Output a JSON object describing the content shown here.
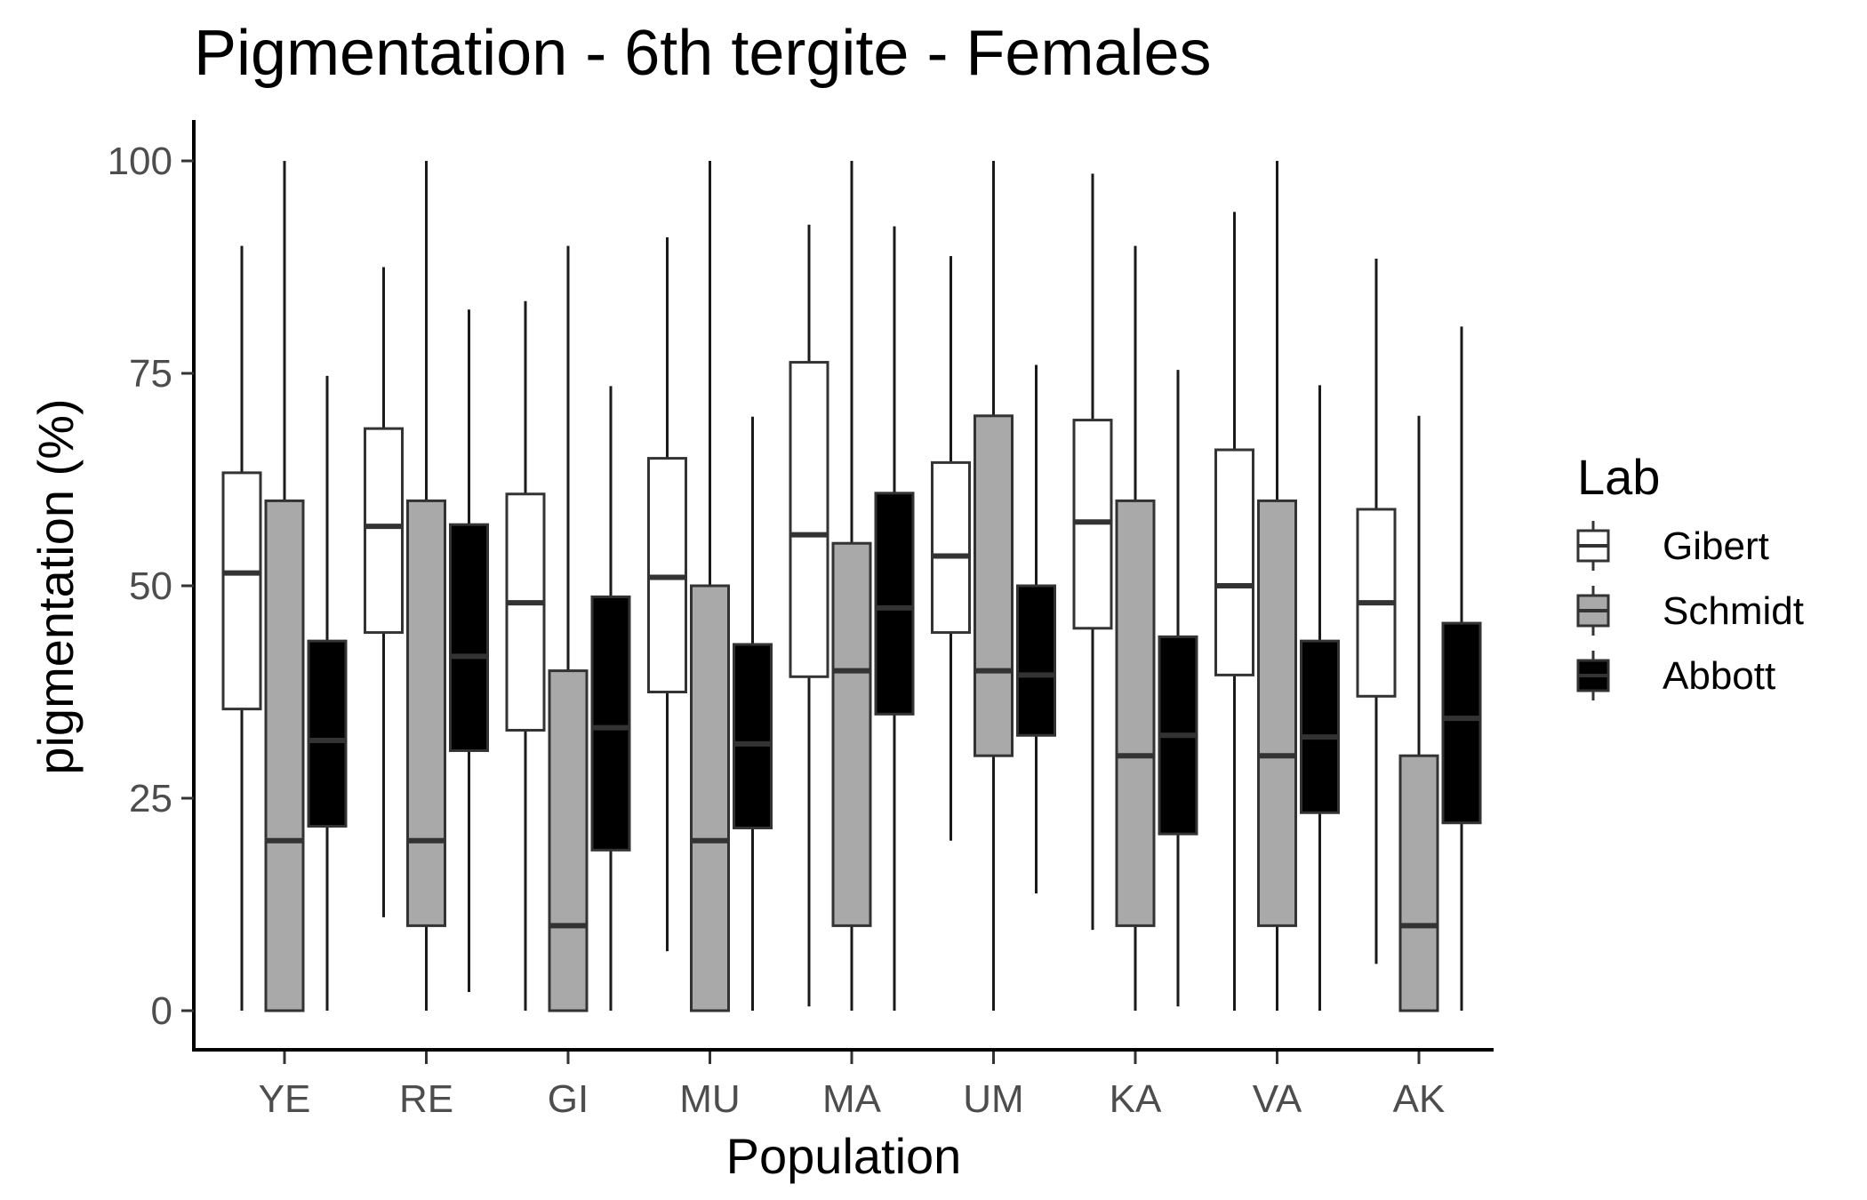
{
  "chart_data": {
    "type": "boxplot",
    "title": "Pigmentation - 6th tergite - Females",
    "xlabel": "Population",
    "ylabel": "pigmentation (%)",
    "categories": [
      "YE",
      "RE",
      "GI",
      "MU",
      "MA",
      "UM",
      "KA",
      "VA",
      "AK"
    ],
    "yticks": [
      0,
      25,
      50,
      75,
      100
    ],
    "ylim": [
      -5,
      105
    ],
    "legend": {
      "title": "Lab",
      "placement": "right"
    },
    "grid": false,
    "series": [
      {
        "name": "Gibert",
        "fill": "#ffffff",
        "median_color": "#333333",
        "boxes": [
          {
            "whisker_low": 0,
            "q1": 35.5,
            "median": 51.5,
            "q3": 63.3,
            "whisker_high": 90
          },
          {
            "whisker_low": 11,
            "q1": 44.5,
            "median": 57,
            "q3": 68.5,
            "whisker_high": 87.5
          },
          {
            "whisker_low": 0,
            "q1": 33,
            "median": 48,
            "q3": 60.8,
            "whisker_high": 83.5
          },
          {
            "whisker_low": 7,
            "q1": 37.5,
            "median": 51,
            "q3": 65,
            "whisker_high": 91
          },
          {
            "whisker_low": 0.5,
            "q1": 39.3,
            "median": 56,
            "q3": 76.3,
            "whisker_high": 92.5
          },
          {
            "whisker_low": 20,
            "q1": 44.5,
            "median": 53.5,
            "q3": 64.5,
            "whisker_high": 88.8
          },
          {
            "whisker_low": 9.5,
            "q1": 45,
            "median": 57.5,
            "q3": 69.5,
            "whisker_high": 98.5
          },
          {
            "whisker_low": 0,
            "q1": 39.5,
            "median": 50,
            "q3": 66,
            "whisker_high": 94
          },
          {
            "whisker_low": 5.5,
            "q1": 37,
            "median": 48,
            "q3": 59,
            "whisker_high": 88.5
          }
        ]
      },
      {
        "name": "Schmidt",
        "fill": "#a9a9a9",
        "median_color": "#333333",
        "boxes": [
          {
            "whisker_low": 0,
            "q1": 0,
            "median": 20,
            "q3": 60,
            "whisker_high": 100
          },
          {
            "whisker_low": 0,
            "q1": 10,
            "median": 20,
            "q3": 60,
            "whisker_high": 100
          },
          {
            "whisker_low": 0,
            "q1": 0,
            "median": 10,
            "q3": 40,
            "whisker_high": 90
          },
          {
            "whisker_low": 0,
            "q1": 0,
            "median": 20,
            "q3": 50,
            "whisker_high": 100
          },
          {
            "whisker_low": 0,
            "q1": 10,
            "median": 40,
            "q3": 55,
            "whisker_high": 100
          },
          {
            "whisker_low": 0,
            "q1": 30,
            "median": 40,
            "q3": 70,
            "whisker_high": 100
          },
          {
            "whisker_low": 0,
            "q1": 10,
            "median": 30,
            "q3": 60,
            "whisker_high": 90
          },
          {
            "whisker_low": 0,
            "q1": 10,
            "median": 30,
            "q3": 60,
            "whisker_high": 100
          },
          {
            "whisker_low": 0,
            "q1": 0,
            "median": 10,
            "q3": 30,
            "whisker_high": 70
          }
        ]
      },
      {
        "name": "Abbott",
        "fill": "#000000",
        "median_color": "#333333",
        "boxes": [
          {
            "whisker_low": 0,
            "q1": 21.7,
            "median": 31.8,
            "q3": 43.5,
            "whisker_high": 74.7
          },
          {
            "whisker_low": 2.2,
            "q1": 30.6,
            "median": 41.7,
            "q3": 57.2,
            "whisker_high": 82.5
          },
          {
            "whisker_low": 0,
            "q1": 18.9,
            "median": 33.3,
            "q3": 48.7,
            "whisker_high": 73.5
          },
          {
            "whisker_low": 0,
            "q1": 21.5,
            "median": 31.4,
            "q3": 43.1,
            "whisker_high": 69.9
          },
          {
            "whisker_low": 0,
            "q1": 34.9,
            "median": 47.4,
            "q3": 60.9,
            "whisker_high": 92.3
          },
          {
            "whisker_low": 13.8,
            "q1": 32.4,
            "median": 39.5,
            "q3": 50,
            "whisker_high": 76
          },
          {
            "whisker_low": 0.5,
            "q1": 20.8,
            "median": 32.4,
            "q3": 44,
            "whisker_high": 75.4
          },
          {
            "whisker_low": 0,
            "q1": 23.3,
            "median": 32.2,
            "q3": 43.5,
            "whisker_high": 73.6
          },
          {
            "whisker_low": 0,
            "q1": 22.1,
            "median": 34.4,
            "q3": 45.6,
            "whisker_high": 80.5
          }
        ]
      }
    ]
  }
}
